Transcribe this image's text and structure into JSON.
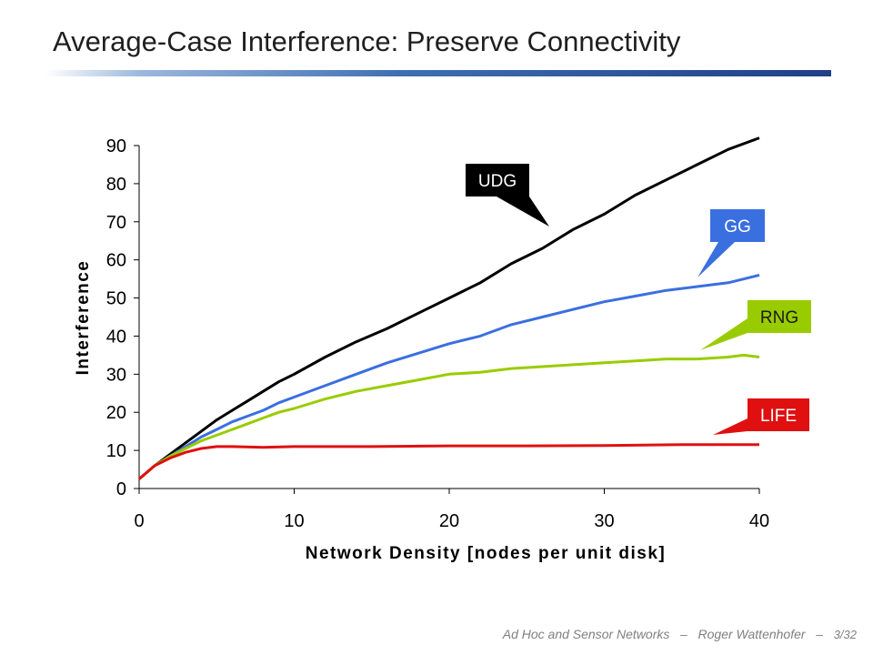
{
  "slide": {
    "title": "Average-Case Interference: Preserve Connectivity"
  },
  "footer": {
    "course": "Ad Hoc and Sensor Networks",
    "sep": "–",
    "author": "Roger Wattenhofer",
    "page": "3/32"
  },
  "chart_data": {
    "type": "line",
    "title": "",
    "xlabel": "Network Density [nodes per unit disk]",
    "ylabel": "Interference",
    "xlim": [
      0,
      40
    ],
    "ylim": [
      0,
      90
    ],
    "xticks": [
      0,
      10,
      20,
      30,
      40
    ],
    "yticks": [
      0,
      10,
      20,
      30,
      40,
      50,
      60,
      70,
      80,
      90
    ],
    "grid": false,
    "legend": "callout labels",
    "series": [
      {
        "name": "UDG",
        "color": "#000000",
        "x": [
          0,
          1,
          2,
          3,
          4,
          5,
          6,
          7,
          8,
          9,
          10,
          12,
          14,
          16,
          18,
          20,
          22,
          24,
          26,
          28,
          30,
          32,
          34,
          36,
          38,
          40
        ],
        "y": [
          2.5,
          6,
          9,
          12,
          15,
          18,
          20.5,
          23,
          25.5,
          28,
          30,
          34.5,
          38.5,
          42,
          46,
          50,
          54,
          59,
          63,
          68,
          72,
          77,
          81,
          85,
          89,
          92
        ]
      },
      {
        "name": "GG",
        "color": "#3a6fe0",
        "x": [
          0,
          1,
          2,
          3,
          4,
          5,
          6,
          7,
          8,
          9,
          10,
          12,
          14,
          16,
          18,
          20,
          22,
          24,
          26,
          28,
          30,
          32,
          34,
          36,
          38,
          40
        ],
        "y": [
          2.5,
          6,
          8.5,
          11,
          13.5,
          15.5,
          17.5,
          19,
          20.5,
          22.5,
          24,
          27,
          30,
          33,
          35.5,
          38,
          40,
          43,
          45,
          47,
          49,
          50.5,
          52,
          53,
          54,
          56
        ]
      },
      {
        "name": "RNG",
        "color": "#99cc00",
        "x": [
          0,
          1,
          2,
          3,
          4,
          5,
          6,
          7,
          8,
          9,
          10,
          12,
          14,
          16,
          18,
          20,
          22,
          24,
          26,
          28,
          30,
          32,
          34,
          36,
          38,
          39,
          40
        ],
        "y": [
          2.5,
          6,
          8.5,
          10.5,
          12.5,
          14,
          15.5,
          17,
          18.5,
          20,
          21,
          23.5,
          25.5,
          27,
          28.5,
          30,
          30.5,
          31.5,
          32,
          32.5,
          33,
          33.5,
          34,
          34,
          34.5,
          35,
          34.5
        ]
      },
      {
        "name": "LIFE",
        "color": "#e01010",
        "x": [
          0,
          1,
          2,
          3,
          4,
          5,
          6,
          8,
          10,
          15,
          20,
          25,
          30,
          35,
          40
        ],
        "y": [
          2.5,
          6,
          8,
          9.5,
          10.5,
          11,
          11,
          10.8,
          11,
          11,
          11.2,
          11.2,
          11.3,
          11.5,
          11.5
        ]
      }
    ]
  },
  "callouts": [
    {
      "label": "UDG",
      "bg": "#000000",
      "fg": "#ffffff",
      "series": "UDG"
    },
    {
      "label": "GG",
      "bg": "#3a6fe0",
      "fg": "#ffffff",
      "series": "GG"
    },
    {
      "label": "RNG",
      "bg": "#99cc00",
      "fg": "#1a1a1a",
      "series": "RNG"
    },
    {
      "label": "LIFE",
      "bg": "#e01010",
      "fg": "#ffffff",
      "series": "LIFE"
    }
  ]
}
